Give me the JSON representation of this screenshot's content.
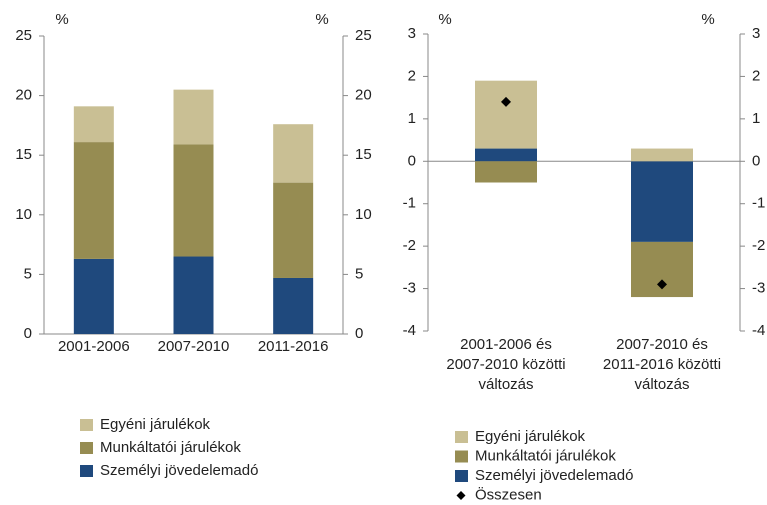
{
  "chart_data": [
    {
      "type": "bar",
      "stacked": true,
      "ylabel": "%",
      "y2label": "%",
      "categories": [
        "2001-2006",
        "2007-2010",
        "2011-2016"
      ],
      "series": [
        {
          "name": "Személyi jövedelemadó",
          "color": "#1f497d",
          "values": [
            6.3,
            6.5,
            4.7
          ]
        },
        {
          "name": "Munkáltatói járulékok",
          "color": "#968c52",
          "values": [
            9.8,
            9.4,
            8.0
          ]
        },
        {
          "name": "Egyéni járulékok",
          "color": "#c9bf94",
          "values": [
            3.0,
            4.6,
            4.9
          ]
        }
      ],
      "ylim": [
        0,
        25
      ],
      "yticks": [
        0,
        5,
        10,
        15,
        20,
        25
      ],
      "y2lim": [
        0,
        25
      ],
      "y2ticks": [
        0,
        5,
        10,
        15,
        20,
        25
      ],
      "grid": false
    },
    {
      "type": "bar",
      "stacked": true,
      "ylabel": "%",
      "y2label": "%",
      "categories": [
        "2001-2006 és\n2007-2010 közötti\nváltozás",
        "2007-2010 és\n2011-2016 közötti\nváltozás"
      ],
      "series": [
        {
          "name": "Személyi jövedelemadó",
          "color": "#1f497d",
          "values": [
            0.3,
            -1.9
          ]
        },
        {
          "name": "Munkáltatói járulékok",
          "color": "#968c52",
          "values": [
            -0.5,
            -1.3
          ]
        },
        {
          "name": "Egyéni járulékok",
          "color": "#c9bf94",
          "values": [
            1.6,
            0.3
          ]
        },
        {
          "name": "Összesen",
          "type": "scatter",
          "marker": "diamond",
          "color": "#000000",
          "values": [
            1.4,
            -2.9
          ]
        }
      ],
      "ylim": [
        -4,
        3
      ],
      "yticks": [
        -4,
        -3,
        -2,
        -1,
        0,
        1,
        2,
        3
      ],
      "y2lim": [
        -4,
        3
      ],
      "y2ticks": [
        -4,
        -3,
        -2,
        -1,
        0,
        1,
        2,
        3
      ],
      "grid": false
    }
  ]
}
